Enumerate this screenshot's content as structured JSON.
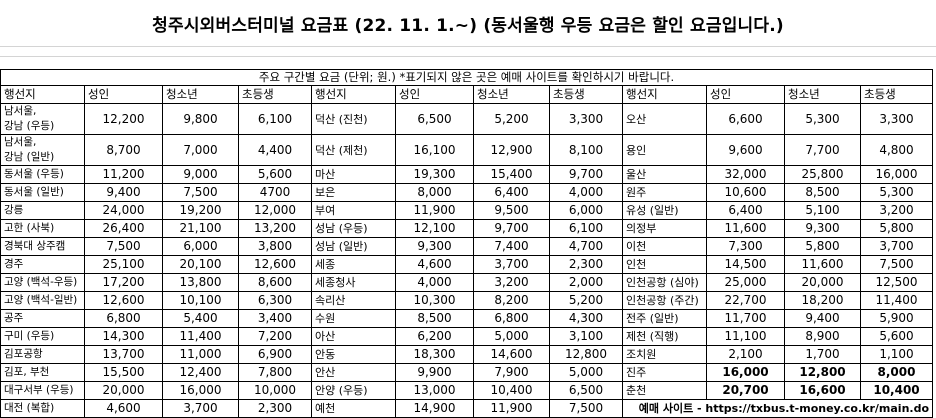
{
  "title": "청주시외버스터미널 요금표 (22. 11. 1.~) (동서울행 우등 요금은 할인 요금입니다.)",
  "notice": "주요 구간별 요금 (단위; 원.) *표기되지 않은 곳은 예매 사이트를 확인하시기 바랍니다.",
  "headers": [
    "행선지",
    "성인",
    "청소년",
    "초등생"
  ],
  "rows_left": [
    {
      "dest_line1": "남서울,",
      "dest_line2": "강남 (우등)",
      "adult": "12,200",
      "youth": "9,800",
      "child": "6,100"
    },
    {
      "dest_line1": "남서울,",
      "dest_line2": "강남 (일반)",
      "adult": "8,700",
      "youth": "7,000",
      "child": "4,400"
    },
    {
      "dest": "동서울 (우등)",
      "adult": "11,200",
      "youth": "9,000",
      "child": "5,600"
    },
    {
      "dest": "동서울 (일반)",
      "adult": "9,400",
      "youth": "7,500",
      "child": "4700"
    },
    {
      "dest": "강릉",
      "adult": "24,000",
      "youth": "19,200",
      "child": "12,000"
    },
    {
      "dest": "고한 (사북)",
      "adult": "26,400",
      "youth": "21,100",
      "child": "13,200"
    },
    {
      "dest": "경북대 상주캠",
      "adult": "7,500",
      "youth": "6,000",
      "child": "3,800"
    },
    {
      "dest": "경주",
      "adult": "25,100",
      "youth": "20,100",
      "child": "12,600"
    },
    {
      "dest": "고양 (백석-우등)",
      "adult": "17,200",
      "youth": "13,800",
      "child": "8,600"
    },
    {
      "dest": "고양 (백석-일반)",
      "adult": "12,600",
      "youth": "10,100",
      "child": "6,300"
    },
    {
      "dest": "공주",
      "adult": "6,800",
      "youth": "5,400",
      "child": "3,400"
    },
    {
      "dest": "구미 (우등)",
      "adult": "14,300",
      "youth": "11,400",
      "child": "7,200"
    },
    {
      "dest": "김포공항",
      "adult": "13,700",
      "youth": "11,000",
      "child": "6,900"
    },
    {
      "dest": "김포, 부천",
      "adult": "15,500",
      "youth": "12,400",
      "child": "7,800"
    },
    {
      "dest": "대구서부 (우등)",
      "adult": "20,000",
      "youth": "16,000",
      "child": "10,000"
    },
    {
      "dest": "대전 (복합)",
      "adult": "4,600",
      "youth": "3,700",
      "child": "2,300"
    }
  ],
  "rows_mid": [
    {
      "dest": "덕산 (진천)",
      "adult": "6,500",
      "youth": "5,200",
      "child": "3,300"
    },
    {
      "dest": "덕산 (제천)",
      "adult": "16,100",
      "youth": "12,900",
      "child": "8,100"
    },
    {
      "dest": "마산",
      "adult": "19,300",
      "youth": "15,400",
      "child": "9,700"
    },
    {
      "dest": "보은",
      "adult": "8,000",
      "youth": "6,400",
      "child": "4,000"
    },
    {
      "dest": "부여",
      "adult": "11,900",
      "youth": "9,500",
      "child": "6,000"
    },
    {
      "dest": "성남 (우등)",
      "adult": "12,100",
      "youth": "9,700",
      "child": "6,100"
    },
    {
      "dest": "성남 (일반)",
      "adult": "9,300",
      "youth": "7,400",
      "child": "4,700"
    },
    {
      "dest": "세종",
      "adult": "4,600",
      "youth": "3,700",
      "child": "2,300"
    },
    {
      "dest": "세종청사",
      "adult": "4,000",
      "youth": "3,200",
      "child": "2,000"
    },
    {
      "dest": "속리산",
      "adult": "10,300",
      "youth": "8,200",
      "child": "5,200"
    },
    {
      "dest": "수원",
      "adult": "8,500",
      "youth": "6,800",
      "child": "4,300"
    },
    {
      "dest": "아산",
      "adult": "6,200",
      "youth": "5,000",
      "child": "3,100"
    },
    {
      "dest": "안동",
      "adult": "18,300",
      "youth": "14,600",
      "child": "12,800"
    },
    {
      "dest": "안산",
      "adult": "9,900",
      "youth": "7,900",
      "child": "5,000"
    },
    {
      "dest": "안양 (우등)",
      "adult": "13,000",
      "youth": "10,400",
      "child": "6,500"
    },
    {
      "dest": "예천",
      "adult": "14,900",
      "youth": "11,900",
      "child": "7,500"
    }
  ],
  "rows_right": [
    {
      "dest": "오산",
      "adult": "6,600",
      "youth": "5,300",
      "child": "3,300"
    },
    {
      "dest": "용인",
      "adult": "9,600",
      "youth": "7,700",
      "child": "4,800"
    },
    {
      "dest": "울산",
      "adult": "32,000",
      "youth": "25,800",
      "child": "16,000"
    },
    {
      "dest": "원주",
      "adult": "10,600",
      "youth": "8,500",
      "child": "5,300"
    },
    {
      "dest": "유성 (일반)",
      "adult": "6,400",
      "youth": "5,100",
      "child": "3,200"
    },
    {
      "dest": "의정부",
      "adult": "11,600",
      "youth": "9,300",
      "child": "5,800"
    },
    {
      "dest": "이천",
      "adult": "7,300",
      "youth": "5,800",
      "child": "3,700"
    },
    {
      "dest": "인천",
      "adult": "14,500",
      "youth": "11,600",
      "child": "7,500"
    },
    {
      "dest": "인천공항 (심야)",
      "adult": "25,000",
      "youth": "20,000",
      "child": "12,500"
    },
    {
      "dest": "인천공항 (주간)",
      "adult": "22,700",
      "youth": "18,200",
      "child": "11,400"
    },
    {
      "dest": "전주 (일반)",
      "adult": "11,700",
      "youth": "9,400",
      "child": "5,900"
    },
    {
      "dest": "제천 (직행)",
      "adult": "11,100",
      "youth": "8,900",
      "child": "5,600"
    },
    {
      "dest": "조치원",
      "adult": "2,100",
      "youth": "1,700",
      "child": "1,100"
    },
    {
      "dest": "진주",
      "adult": "16,000",
      "youth": "12,800",
      "child": "8,000"
    },
    {
      "dest": "춘천",
      "adult": "20,700",
      "youth": "16,600",
      "child": "10,400"
    }
  ],
  "reservation_site": "예매 사이트 - https://txbus.t-money.co.kr/main.do"
}
